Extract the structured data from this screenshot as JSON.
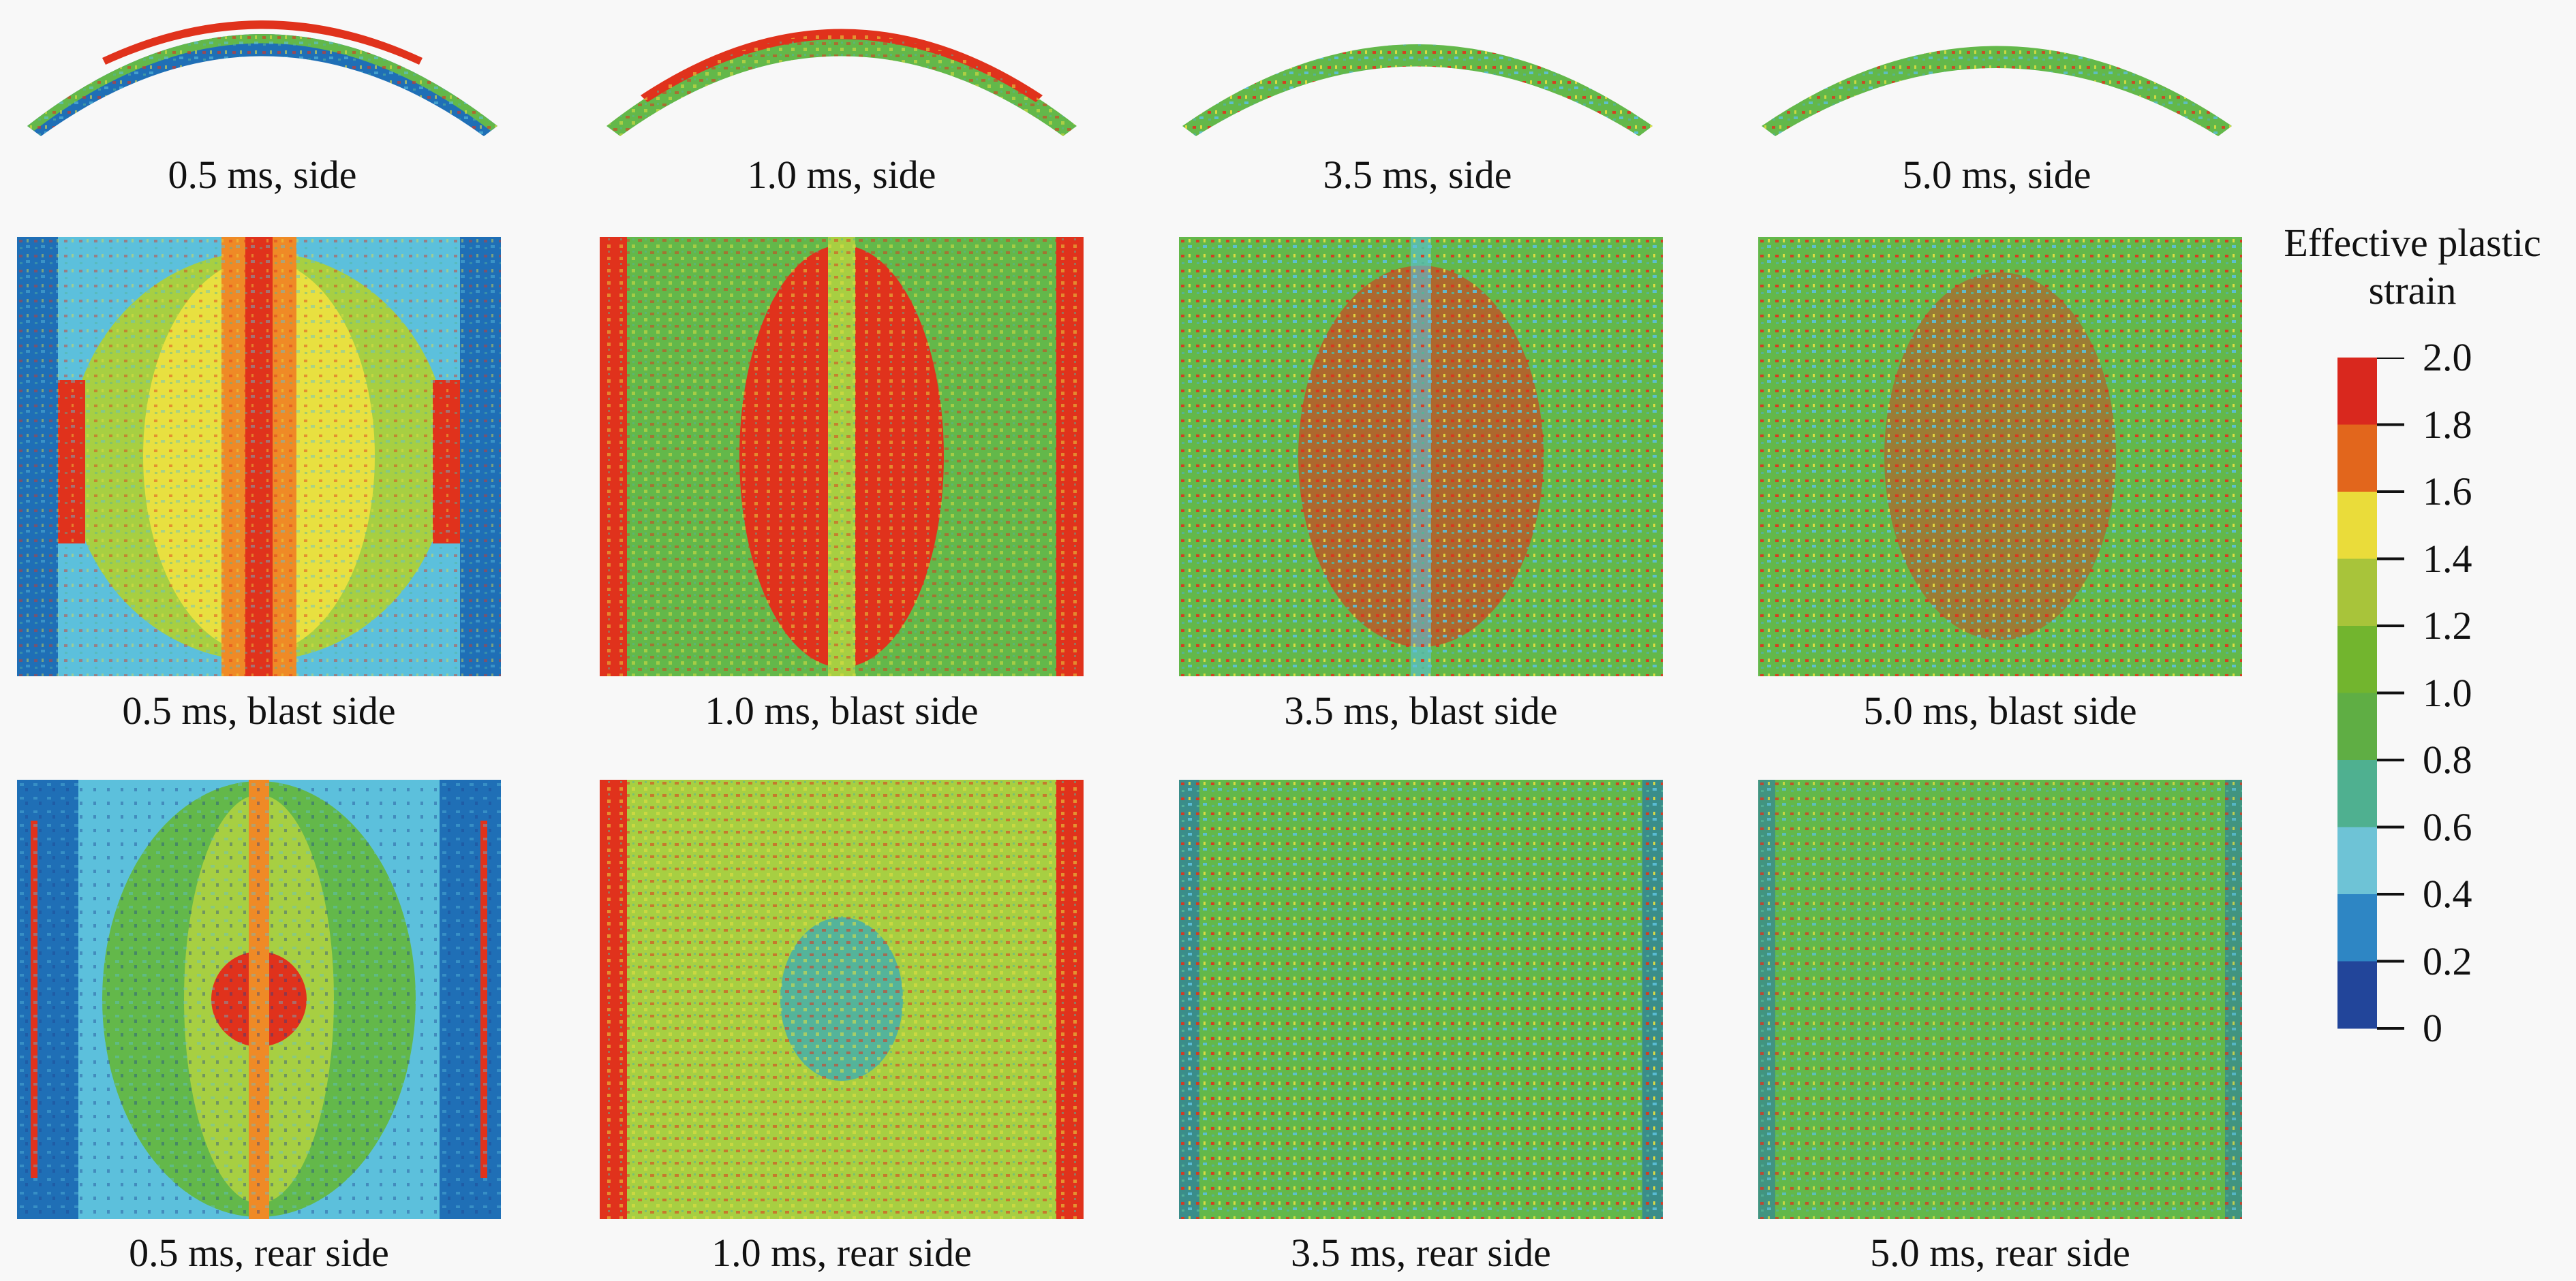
{
  "figure": {
    "rows": [
      {
        "view": "side",
        "captions": [
          "0.5 ms, side",
          "1.0 ms, side",
          "3.5 ms, side",
          "5.0 ms, side"
        ]
      },
      {
        "view": "blast side",
        "captions": [
          "0.5 ms, blast side",
          "1.0 ms, blast side",
          "3.5 ms, blast side",
          "5.0 ms, blast side"
        ]
      },
      {
        "view": "rear side",
        "captions": [
          "0.5 ms, rear side",
          "1.0 ms, rear side",
          "3.5 ms, rear side",
          "5.0 ms, rear side"
        ]
      }
    ]
  },
  "legend": {
    "title_line1": "Effective plastic",
    "title_line2": "strain",
    "ticks": [
      "2.0",
      "1.8",
      "1.6",
      "1.4",
      "1.2",
      "1.0",
      "0.8",
      "0.6",
      "0.4",
      "0.2",
      "0"
    ],
    "colors": [
      "#d9281e",
      "#e2661c",
      "#eadc3a",
      "#a8c43a",
      "#72b52e",
      "#5fae44",
      "#4fb090",
      "#6ec3d6",
      "#2e86c4",
      "#22459a"
    ]
  },
  "palette": {
    "red": "#e0321c",
    "orange": "#ef8a26",
    "yellow": "#e8e040",
    "lime": "#a7cf42",
    "green": "#63b84a",
    "teal": "#54b49a",
    "cyan": "#5cc0dc",
    "blue": "#1f6fb6",
    "navy": "#1e3f8f"
  }
}
